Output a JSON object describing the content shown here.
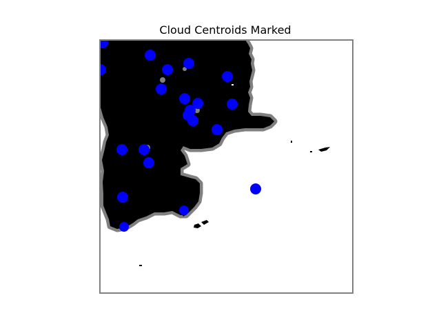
{
  "figure": {
    "title": "Cloud Centroids Marked"
  },
  "colors": {
    "cloud_fill": "#000000",
    "cloud_edge": "#808080",
    "centroid": "#0000ff",
    "frame": "#808080",
    "background": "#ffffff"
  },
  "centroids": {
    "marker": "filled-circle",
    "count": 23
  }
}
